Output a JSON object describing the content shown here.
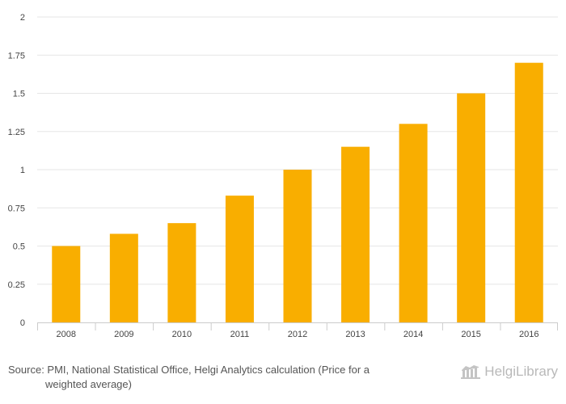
{
  "chart_data": {
    "type": "bar",
    "categories": [
      "2008",
      "2009",
      "2010",
      "2011",
      "2012",
      "2013",
      "2014",
      "2015",
      "2016"
    ],
    "values": [
      0.5,
      0.58,
      0.65,
      0.83,
      1.0,
      1.15,
      1.3,
      1.5,
      1.7
    ],
    "ylim": [
      0,
      2
    ],
    "yticks": [
      "0",
      "0.25",
      "0.5",
      "0.75",
      "1",
      "1.25",
      "1.5",
      "1.75",
      "2"
    ],
    "grid": true,
    "bar_color": "#f9ae00",
    "grid_color": "#e6e6e6"
  },
  "footer": {
    "source_line1": "Source: PMI, National Statistical Office, Helgi Analytics calculation (Price for a",
    "source_line2": "weighted average)"
  },
  "logo": {
    "text": "HelgiLibrary",
    "icon": "library-building-icon"
  }
}
